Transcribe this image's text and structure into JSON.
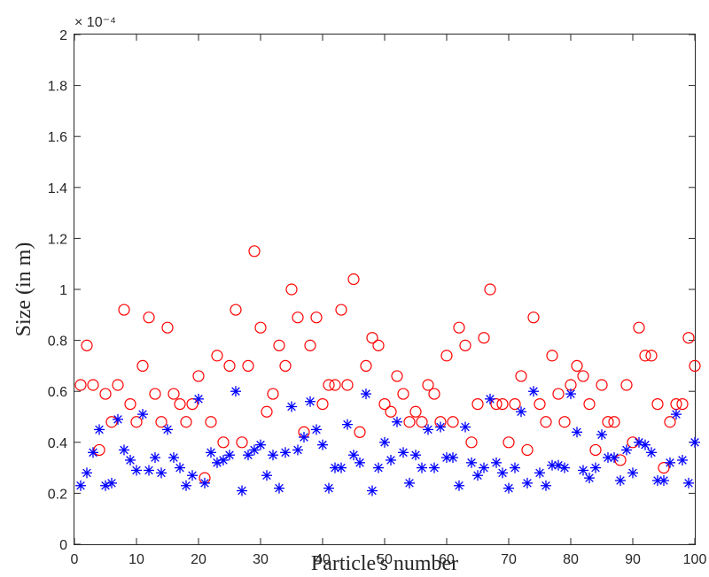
{
  "chart_data": {
    "type": "scatter",
    "title": "",
    "xlabel": "Particle's number",
    "ylabel": "Size (in m)",
    "xlim": [
      0,
      100
    ],
    "ylim": [
      0,
      0.0002
    ],
    "x_ticks": [
      "0",
      "10",
      "20",
      "30",
      "40",
      "50",
      "60",
      "70",
      "80",
      "90",
      "100"
    ],
    "y_ticks": [
      "0",
      "0.2",
      "0.4",
      "0.6",
      "0.8",
      "1",
      "1.2",
      "1.4",
      "1.6",
      "1.8",
      "2"
    ],
    "y_exponent": "× 10⁻⁴",
    "grid": false,
    "legend": "none",
    "series": [
      {
        "marker": "circle",
        "color": "#ff0000",
        "x": [
          1,
          2,
          3,
          4,
          5,
          6,
          7,
          8,
          9,
          10,
          11,
          12,
          13,
          14,
          15,
          16,
          17,
          18,
          19,
          20,
          21,
          22,
          23,
          24,
          25,
          26,
          27,
          28,
          29,
          30,
          31,
          32,
          33,
          34,
          35,
          36,
          37,
          38,
          39,
          40,
          41,
          42,
          43,
          44,
          45,
          46,
          47,
          48,
          49,
          50,
          51,
          52,
          53,
          54,
          55,
          56,
          57,
          58,
          59,
          60,
          61,
          62,
          63,
          64,
          65,
          66,
          67,
          68,
          69,
          70,
          71,
          72,
          73,
          74,
          75,
          76,
          77,
          78,
          79,
          80,
          81,
          82,
          83,
          84,
          85,
          86,
          87,
          88,
          89,
          90,
          91,
          92,
          93,
          94,
          95,
          96,
          97,
          98,
          99,
          100
        ],
        "y": [
          6.25e-05,
          7.8e-05,
          6.25e-05,
          3.7e-05,
          5.9e-05,
          4.8e-05,
          6.25e-05,
          9.2e-05,
          5.5e-05,
          4.8e-05,
          7e-05,
          8.9e-05,
          5.9e-05,
          4.8e-05,
          8.5e-05,
          5.9e-05,
          5.5e-05,
          4.8e-05,
          5.5e-05,
          6.6e-05,
          2.6e-05,
          4.8e-05,
          7.4e-05,
          4e-05,
          7e-05,
          9.2e-05,
          4e-05,
          7e-05,
          0.000115,
          8.5e-05,
          5.2e-05,
          5.9e-05,
          7.8e-05,
          7e-05,
          0.0001,
          8.9e-05,
          4.4e-05,
          7.8e-05,
          8.9e-05,
          5.5e-05,
          6.25e-05,
          6.25e-05,
          9.2e-05,
          6.25e-05,
          0.000104,
          4.4e-05,
          7e-05,
          8.1e-05,
          7.8e-05,
          5.5e-05,
          5.2e-05,
          6.6e-05,
          5.9e-05,
          4.8e-05,
          5.2e-05,
          4.8e-05,
          6.25e-05,
          5.9e-05,
          4.8e-05,
          7.4e-05,
          4.8e-05,
          8.5e-05,
          7.8e-05,
          4e-05,
          5.5e-05,
          8.1e-05,
          0.0001,
          5.5e-05,
          5.5e-05,
          4e-05,
          5.5e-05,
          6.6e-05,
          3.7e-05,
          8.9e-05,
          5.5e-05,
          4.8e-05,
          7.4e-05,
          5.9e-05,
          4.8e-05,
          6.25e-05,
          7e-05,
          6.6e-05,
          5.5e-05,
          3.7e-05,
          6.25e-05,
          4.8e-05,
          4.8e-05,
          3.3e-05,
          6.25e-05,
          4e-05,
          8.5e-05,
          7.4e-05,
          7.4e-05,
          5.5e-05,
          3e-05,
          4.8e-05,
          5.5e-05,
          5.5e-05,
          8.1e-05,
          7e-05
        ]
      },
      {
        "marker": "asterisk",
        "color": "#0000ff",
        "x": [
          1,
          2,
          3,
          4,
          5,
          6,
          7,
          8,
          9,
          10,
          11,
          12,
          13,
          14,
          15,
          16,
          17,
          18,
          19,
          20,
          21,
          22,
          23,
          24,
          25,
          26,
          27,
          28,
          29,
          30,
          31,
          32,
          33,
          34,
          35,
          36,
          37,
          38,
          39,
          40,
          41,
          42,
          43,
          44,
          45,
          46,
          47,
          48,
          49,
          50,
          51,
          52,
          53,
          54,
          55,
          56,
          57,
          58,
          59,
          60,
          61,
          62,
          63,
          64,
          65,
          66,
          67,
          68,
          69,
          70,
          71,
          72,
          73,
          74,
          75,
          76,
          77,
          78,
          79,
          80,
          81,
          82,
          83,
          84,
          85,
          86,
          87,
          88,
          89,
          90,
          91,
          92,
          93,
          94,
          95,
          96,
          97,
          98,
          99,
          100
        ],
        "y": [
          2.3e-05,
          2.8e-05,
          3.6e-05,
          4.5e-05,
          2.3e-05,
          2.4e-05,
          4.9e-05,
          3.7e-05,
          3.3e-05,
          2.9e-05,
          5.1e-05,
          2.9e-05,
          3.4e-05,
          2.8e-05,
          4.5e-05,
          3.4e-05,
          3e-05,
          2.3e-05,
          2.7e-05,
          5.7e-05,
          2.4e-05,
          3.6e-05,
          3.2e-05,
          3.3e-05,
          3.5e-05,
          6e-05,
          2.1e-05,
          3.5e-05,
          3.7e-05,
          3.9e-05,
          2.7e-05,
          3.5e-05,
          2.2e-05,
          3.6e-05,
          5.4e-05,
          3.7e-05,
          4.2e-05,
          5.6e-05,
          4.5e-05,
          3.9e-05,
          2.2e-05,
          3e-05,
          3e-05,
          4.7e-05,
          3.5e-05,
          3.2e-05,
          5.9e-05,
          2.1e-05,
          3e-05,
          4e-05,
          3.3e-05,
          4.8e-05,
          3.6e-05,
          2.4e-05,
          3.5e-05,
          3e-05,
          4.5e-05,
          3e-05,
          4.6e-05,
          3.4e-05,
          3.4e-05,
          2.3e-05,
          4.6e-05,
          3.2e-05,
          2.7e-05,
          3e-05,
          5.7e-05,
          3.2e-05,
          2.8e-05,
          2.2e-05,
          3e-05,
          5.2e-05,
          2.4e-05,
          6e-05,
          2.8e-05,
          2.3e-05,
          3.1e-05,
          3.1e-05,
          3e-05,
          5.9e-05,
          4.4e-05,
          2.9e-05,
          2.6e-05,
          3e-05,
          4.3e-05,
          3.4e-05,
          3.4e-05,
          2.5e-05,
          3.7e-05,
          2.8e-05,
          4e-05,
          3.9e-05,
          3.6e-05,
          2.5e-05,
          2.5e-05,
          3.2e-05,
          5.1e-05,
          3.3e-05,
          2.4e-05,
          4e-05
        ]
      }
    ]
  }
}
